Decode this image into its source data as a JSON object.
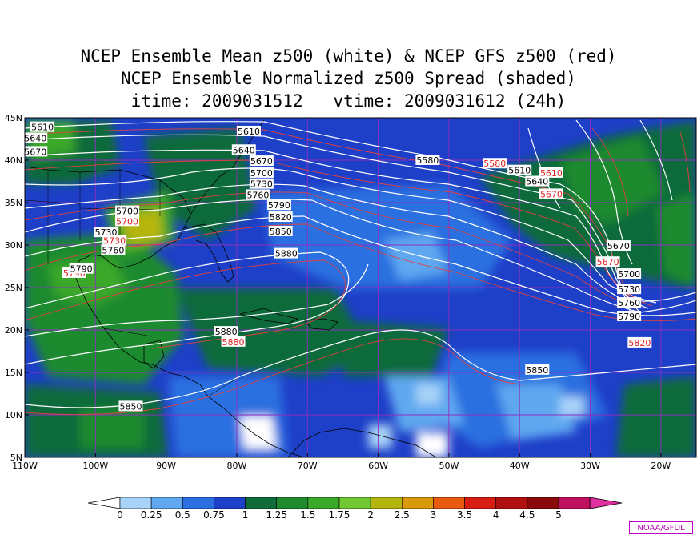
{
  "title": {
    "line1": "NCEP Ensemble Mean z500 (white) & NCEP GFS z500 (red)",
    "line2": "NCEP Ensemble Normalized z500 Spread (shaded)",
    "line3": "itime: 2009031512   vtime: 2009031612 (24h)"
  },
  "axes": {
    "lat_labels": [
      "45N",
      "40N",
      "35N",
      "30N",
      "25N",
      "20N",
      "15N",
      "10N",
      "5N"
    ],
    "lon_labels": [
      "110W",
      "100W",
      "90W",
      "80W",
      "70W",
      "60W",
      "50W",
      "40W",
      "30W",
      "20W"
    ]
  },
  "contour_labels_white": [
    {
      "text": "5610",
      "lon": -107.5,
      "lat": 43.9
    },
    {
      "text": "5640",
      "lon": -108.5,
      "lat": 42.6
    },
    {
      "text": "5670",
      "lon": -108.5,
      "lat": 41.0
    },
    {
      "text": "5610",
      "lon": -78.3,
      "lat": 43.4
    },
    {
      "text": "5640",
      "lon": -79.0,
      "lat": 41.2
    },
    {
      "text": "5670",
      "lon": -76.5,
      "lat": 39.9
    },
    {
      "text": "5700",
      "lon": -76.5,
      "lat": 38.5
    },
    {
      "text": "5730",
      "lon": -76.5,
      "lat": 37.2
    },
    {
      "text": "5760",
      "lon": -77.0,
      "lat": 35.9
    },
    {
      "text": "5790",
      "lon": -74.0,
      "lat": 34.7
    },
    {
      "text": "5820",
      "lon": -73.8,
      "lat": 33.3
    },
    {
      "text": "5850",
      "lon": -73.8,
      "lat": 31.6
    },
    {
      "text": "5880",
      "lon": -73.0,
      "lat": 29.0
    },
    {
      "text": "5580",
      "lon": -53.0,
      "lat": 40.0
    },
    {
      "text": "5610",
      "lon": -40.0,
      "lat": 38.8
    },
    {
      "text": "5640",
      "lon": -37.5,
      "lat": 37.5
    },
    {
      "text": "5700",
      "lon": -95.5,
      "lat": 34.0
    },
    {
      "text": "5730",
      "lon": -98.5,
      "lat": 31.5
    },
    {
      "text": "5760",
      "lon": -97.5,
      "lat": 29.4
    },
    {
      "text": "5790",
      "lon": -102.0,
      "lat": 27.2
    },
    {
      "text": "5880",
      "lon": -81.5,
      "lat": 19.8
    },
    {
      "text": "5850",
      "lon": -95.0,
      "lat": 11.0
    },
    {
      "text": "5850",
      "lon": -37.5,
      "lat": 15.3
    },
    {
      "text": "5670",
      "lon": -26.0,
      "lat": 29.9
    },
    {
      "text": "5700",
      "lon": -24.5,
      "lat": 26.6
    },
    {
      "text": "5730",
      "lon": -24.5,
      "lat": 24.8
    },
    {
      "text": "5760",
      "lon": -24.5,
      "lat": 23.2
    },
    {
      "text": "5790",
      "lon": -24.5,
      "lat": 21.6
    }
  ],
  "contour_labels_red": [
    {
      "text": "5700",
      "lon": -95.5,
      "lat": 32.8
    },
    {
      "text": "5730",
      "lon": -97.3,
      "lat": 30.5
    },
    {
      "text": "5790",
      "lon": -103.0,
      "lat": 26.7
    },
    {
      "text": "5880",
      "lon": -80.5,
      "lat": 18.6
    },
    {
      "text": "5580",
      "lon": -43.5,
      "lat": 39.6
    },
    {
      "text": "5610",
      "lon": -35.5,
      "lat": 38.5
    },
    {
      "text": "5670",
      "lon": -35.5,
      "lat": 36.0
    },
    {
      "text": "5670",
      "lon": -27.5,
      "lat": 28.0
    },
    {
      "text": "5820",
      "lon": -23.0,
      "lat": 18.5
    }
  ],
  "colorbar": {
    "levels": [
      "0",
      "0.25",
      "0.5",
      "0.75",
      "1",
      "1.25",
      "1.5",
      "1.75",
      "2",
      "2.5",
      "3",
      "3.5",
      "4",
      "4.5",
      "5"
    ],
    "colors": [
      "#a8d3f8",
      "#5fa8f0",
      "#2b6fe0",
      "#1e3fc8",
      "#0f6b3a",
      "#1f8a2e",
      "#3aa829",
      "#72c832",
      "#b5b50f",
      "#d89a09",
      "#e85a10",
      "#d81e14",
      "#b01010",
      "#8a0a0a",
      "#c01060",
      "#e030a0"
    ]
  },
  "credit": "NOAA/GFDL"
}
